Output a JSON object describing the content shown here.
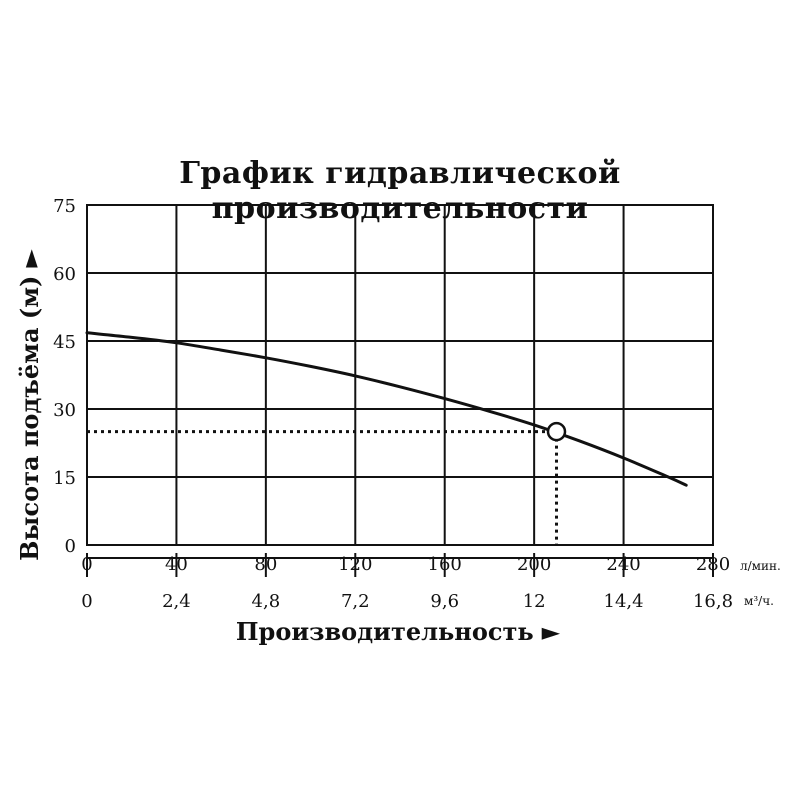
{
  "chart_data": {
    "type": "line",
    "title": "График гидравлической производительности",
    "xlabel": "Производительность",
    "ylabel": "Высота подъёма (м)",
    "axis_arrow": "►",
    "x_axis": {
      "unit": "л/мин.",
      "range": [
        0,
        280
      ],
      "ticks": [
        0,
        40,
        80,
        120,
        160,
        200,
        240,
        280
      ],
      "tick_labels": [
        "0",
        "40",
        "80",
        "120",
        "160",
        "200",
        "240",
        "280"
      ]
    },
    "x2_axis": {
      "unit": "м³/ч.",
      "tick_labels": [
        "0",
        "2,4",
        "4,8",
        "7,2",
        "9,6",
        "12",
        "14,4",
        "16,8"
      ]
    },
    "y_axis": {
      "range": [
        0,
        75
      ],
      "ticks": [
        0,
        15,
        30,
        45,
        60,
        75
      ],
      "tick_labels": [
        "0",
        "15",
        "30",
        "45",
        "60",
        "75"
      ]
    },
    "grid": true,
    "series": [
      {
        "x": [
          0,
          20,
          40,
          60,
          80,
          100,
          120,
          140,
          160,
          180,
          200,
          220,
          240,
          260,
          268
        ],
        "y": [
          46.8,
          45.8,
          44.6,
          43.0,
          41.3,
          39.4,
          37.3,
          34.9,
          32.3,
          29.5,
          26.5,
          23.0,
          19.2,
          15.0,
          13.2
        ]
      }
    ],
    "operating_point": {
      "x": 210,
      "y": 25
    },
    "colors": {
      "line": "#111111",
      "grid": "#111111",
      "background": "#ffffff"
    }
  }
}
